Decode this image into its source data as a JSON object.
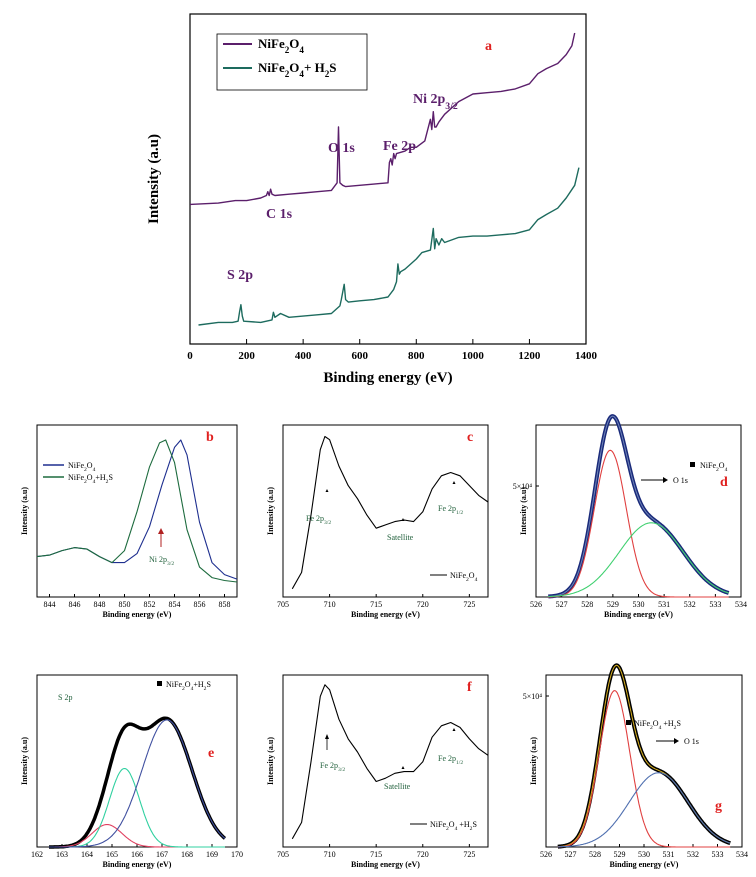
{
  "chart_data": [
    {
      "id": "a",
      "type": "line",
      "panel_letter": "a",
      "xlabel": "Binding energy (eV)",
      "ylabel": "Intensity (a.u)",
      "xlim": [
        0,
        1400
      ],
      "xticks": [
        0,
        200,
        400,
        600,
        800,
        1000,
        1200,
        1400
      ],
      "legend": "top-left",
      "series": [
        {
          "name": "NiFe₂O₄",
          "color": "#5b1f6b",
          "x": [
            0,
            100,
            160,
            200,
            250,
            270,
            275,
            280,
            285,
            290,
            300,
            350,
            400,
            450,
            500,
            520,
            525,
            530,
            540,
            550,
            600,
            650,
            700,
            705,
            710,
            715,
            720,
            725,
            730,
            760,
            780,
            800,
            830,
            850,
            855,
            860,
            865,
            870,
            880,
            900,
            950,
            1000,
            1050,
            1100,
            1150,
            1200,
            1230,
            1260,
            1300,
            1330,
            1350,
            1360
          ],
          "y": [
            0.05,
            0.06,
            0.08,
            0.08,
            0.1,
            0.12,
            0.15,
            0.12,
            0.17,
            0.13,
            0.12,
            0.13,
            0.14,
            0.15,
            0.16,
            0.22,
            0.66,
            0.22,
            0.2,
            0.19,
            0.2,
            0.21,
            0.22,
            0.38,
            0.41,
            0.36,
            0.45,
            0.41,
            0.45,
            0.47,
            0.5,
            0.5,
            0.55,
            0.72,
            0.64,
            0.78,
            0.66,
            0.66,
            0.7,
            0.76,
            0.86,
            0.92,
            0.93,
            0.94,
            0.96,
            1.0,
            1.08,
            1.12,
            1.16,
            1.23,
            1.3,
            1.4
          ]
        },
        {
          "name": "NiFe₂O₄+ H₂S",
          "color": "#1d6b5e",
          "x": [
            30,
            100,
            150,
            170,
            175,
            180,
            185,
            190,
            250,
            290,
            295,
            300,
            320,
            350,
            400,
            450,
            500,
            530,
            535,
            545,
            550,
            560,
            600,
            650,
            700,
            720,
            730,
            735,
            740,
            745,
            760,
            800,
            820,
            850,
            860,
            865,
            870,
            880,
            890,
            900,
            950,
            1000,
            1050,
            1100,
            1150,
            1200,
            1230,
            1260,
            1300,
            1330,
            1360,
            1375
          ],
          "y": [
            -0.9,
            -0.88,
            -0.88,
            -0.87,
            -0.8,
            -0.74,
            -0.83,
            -0.87,
            -0.88,
            -0.86,
            -0.8,
            -0.84,
            -0.81,
            -0.84,
            -0.83,
            -0.82,
            -0.81,
            -0.75,
            -0.7,
            -0.58,
            -0.7,
            -0.72,
            -0.71,
            -0.7,
            -0.68,
            -0.62,
            -0.56,
            -0.42,
            -0.5,
            -0.48,
            -0.46,
            -0.38,
            -0.33,
            -0.31,
            -0.14,
            -0.3,
            -0.22,
            -0.27,
            -0.22,
            -0.25,
            -0.21,
            -0.2,
            -0.2,
            -0.19,
            -0.18,
            -0.15,
            -0.07,
            -0.03,
            0.02,
            0.1,
            0.2,
            0.34
          ]
        }
      ],
      "annotations": [
        {
          "text": "C 1s",
          "x": 270
        },
        {
          "text": "O 1s",
          "x": 530
        },
        {
          "text": "Fe 2p",
          "x": 720
        },
        {
          "text": "Ni 2p3/2",
          "x": 860
        },
        {
          "text": "S 2p",
          "x": 180
        }
      ]
    },
    {
      "id": "b",
      "type": "line",
      "panel_letter": "b",
      "xlabel": "Binding energy (eV)",
      "ylabel": "Intensity (a.u)",
      "xlim": [
        843,
        859
      ],
      "xticks": [
        844,
        846,
        848,
        850,
        852,
        854,
        856,
        858
      ],
      "legend": "top-left",
      "annotation": "Ni 2p3/2",
      "series": [
        {
          "name": "NiFe₂O₄",
          "color": "#1e2f8f",
          "x": [
            843,
            844,
            845,
            846,
            847,
            848,
            849,
            850,
            851,
            852,
            853,
            854,
            854.5,
            855,
            856,
            857,
            858,
            859
          ],
          "y": [
            0.22,
            0.23,
            0.26,
            0.28,
            0.27,
            0.22,
            0.18,
            0.18,
            0.24,
            0.42,
            0.7,
            0.95,
            1.0,
            0.9,
            0.45,
            0.18,
            0.1,
            0.07
          ]
        },
        {
          "name": "NiFe₂O₄+H₂S",
          "color": "#1d6b3e",
          "x": [
            843,
            844,
            845,
            846,
            847,
            848,
            849,
            850,
            851,
            852,
            852.8,
            853.3,
            854,
            855,
            856,
            857,
            858,
            859
          ],
          "y": [
            0.22,
            0.23,
            0.26,
            0.28,
            0.27,
            0.22,
            0.18,
            0.26,
            0.52,
            0.82,
            0.98,
            1.0,
            0.85,
            0.4,
            0.15,
            0.08,
            0.06,
            0.05
          ]
        }
      ]
    },
    {
      "id": "c",
      "type": "line",
      "panel_letter": "c",
      "xlabel": "Binding energy (eV)",
      "ylabel": "Intensity (a.u)",
      "xlim": [
        705,
        727
      ],
      "xticks": [
        705,
        710,
        715,
        720,
        725
      ],
      "legend": "bottom-right",
      "annotations": [
        "Fe 2p3/2",
        "Satellite",
        "Fe 2p1/2"
      ],
      "series": [
        {
          "name": "NiFe₂O₄",
          "color": "#000000",
          "x": [
            706,
            707,
            708,
            709,
            709.5,
            710,
            711,
            712,
            713,
            714,
            715,
            716,
            717,
            718,
            719,
            720,
            721,
            722,
            723,
            724,
            725,
            726,
            727
          ],
          "y": [
            0.05,
            0.15,
            0.5,
            0.9,
            0.98,
            0.96,
            0.8,
            0.68,
            0.6,
            0.5,
            0.42,
            0.44,
            0.46,
            0.47,
            0.46,
            0.52,
            0.66,
            0.74,
            0.76,
            0.74,
            0.68,
            0.62,
            0.58
          ]
        }
      ]
    },
    {
      "id": "d",
      "type": "line",
      "panel_letter": "d",
      "xlabel": "Binding energy (eV)",
      "ylabel": "Intensity (a.u)",
      "xlim": [
        526,
        534
      ],
      "xticks": [
        526,
        527,
        528,
        529,
        530,
        531,
        532,
        533,
        534
      ],
      "ytick_label": "5×10⁴",
      "legend": "top-right",
      "annotation": "O 1s",
      "series": [
        {
          "name": "NiFe₂O₄",
          "color": "#1a2a7a",
          "peaks": [
            {
              "c": 528.9,
              "a": 0.87,
              "w": 0.62
            },
            {
              "c": 530.5,
              "a": 0.44,
              "w": 1.25
            }
          ]
        },
        {
          "name": "",
          "color": "#e04040",
          "peaks": [
            {
              "c": 528.9,
              "a": 0.87,
              "w": 0.62
            }
          ]
        },
        {
          "name": "",
          "color": "#40d070",
          "peaks": [
            {
              "c": 530.5,
              "a": 0.44,
              "w": 1.25
            }
          ]
        }
      ]
    },
    {
      "id": "e",
      "type": "line",
      "panel_letter": "e",
      "xlabel": "Binding energy (eV)",
      "ylabel": "Intensity (a.u)",
      "xlim": [
        162,
        170
      ],
      "xticks": [
        162,
        163,
        164,
        165,
        166,
        167,
        168,
        169,
        170
      ],
      "legend": "top-right",
      "annotation": "S 2p",
      "series": [
        {
          "name": "NiFe₂O₄+H₂S",
          "color": "#000000",
          "peaks": [
            {
              "c": 164.8,
              "a": 0.12,
              "w": 0.6
            },
            {
              "c": 165.5,
              "a": 0.42,
              "w": 0.6
            },
            {
              "c": 167.2,
              "a": 0.68,
              "w": 1.0
            }
          ]
        },
        {
          "name": "",
          "color": "#e04060",
          "peaks": [
            {
              "c": 164.8,
              "a": 0.12,
              "w": 0.6
            }
          ]
        },
        {
          "name": "",
          "color": "#30d0a0",
          "peaks": [
            {
              "c": 165.5,
              "a": 0.42,
              "w": 0.6
            }
          ]
        },
        {
          "name": "",
          "color": "#4050a0",
          "peaks": [
            {
              "c": 167.2,
              "a": 0.68,
              "w": 1.0
            }
          ]
        }
      ]
    },
    {
      "id": "f",
      "type": "line",
      "panel_letter": "f",
      "xlabel": "Binding energy (eV)",
      "ylabel": "Intensity (a.u)",
      "xlim": [
        705,
        727
      ],
      "xticks": [
        705,
        710,
        715,
        720,
        725
      ],
      "legend": "bottom-right",
      "annotations": [
        "Fe 2p3/2",
        "Satellite",
        "Fe 2p1/2"
      ],
      "series": [
        {
          "name": "NiFe₂O₄ +H₂S",
          "color": "#000000",
          "x": [
            706,
            707,
            708,
            709,
            709.5,
            710,
            711,
            712,
            713,
            714,
            715,
            716,
            717,
            718,
            719,
            720,
            721,
            722,
            723,
            724,
            725,
            726,
            727
          ],
          "y": [
            0.05,
            0.15,
            0.52,
            0.92,
            0.99,
            0.96,
            0.78,
            0.66,
            0.58,
            0.48,
            0.4,
            0.42,
            0.45,
            0.46,
            0.46,
            0.52,
            0.67,
            0.74,
            0.76,
            0.73,
            0.66,
            0.6,
            0.56
          ]
        }
      ]
    },
    {
      "id": "g",
      "type": "line",
      "panel_letter": "g",
      "xlabel": "Binding energy (eV)",
      "ylabel": "Intensity (a.u)",
      "xlim": [
        526,
        534
      ],
      "xticks": [
        526,
        527,
        528,
        529,
        530,
        531,
        532,
        533,
        534
      ],
      "ytick_label": "5×10⁴",
      "legend": "top-left",
      "annotation": "O 1s",
      "series": [
        {
          "name": "NiFe₂O₄ +H₂S",
          "color": "#000000",
          "peaks": [
            {
              "c": 528.8,
              "a": 0.8,
              "w": 0.62
            },
            {
              "c": 530.6,
              "a": 0.38,
              "w": 1.2
            }
          ]
        },
        {
          "name": "",
          "color": "#e04040",
          "peaks": [
            {
              "c": 528.8,
              "a": 0.8,
              "w": 0.62
            }
          ]
        },
        {
          "name": "",
          "color": "#5070b0",
          "peaks": [
            {
              "c": 530.6,
              "a": 0.38,
              "w": 1.2
            }
          ]
        }
      ]
    }
  ]
}
